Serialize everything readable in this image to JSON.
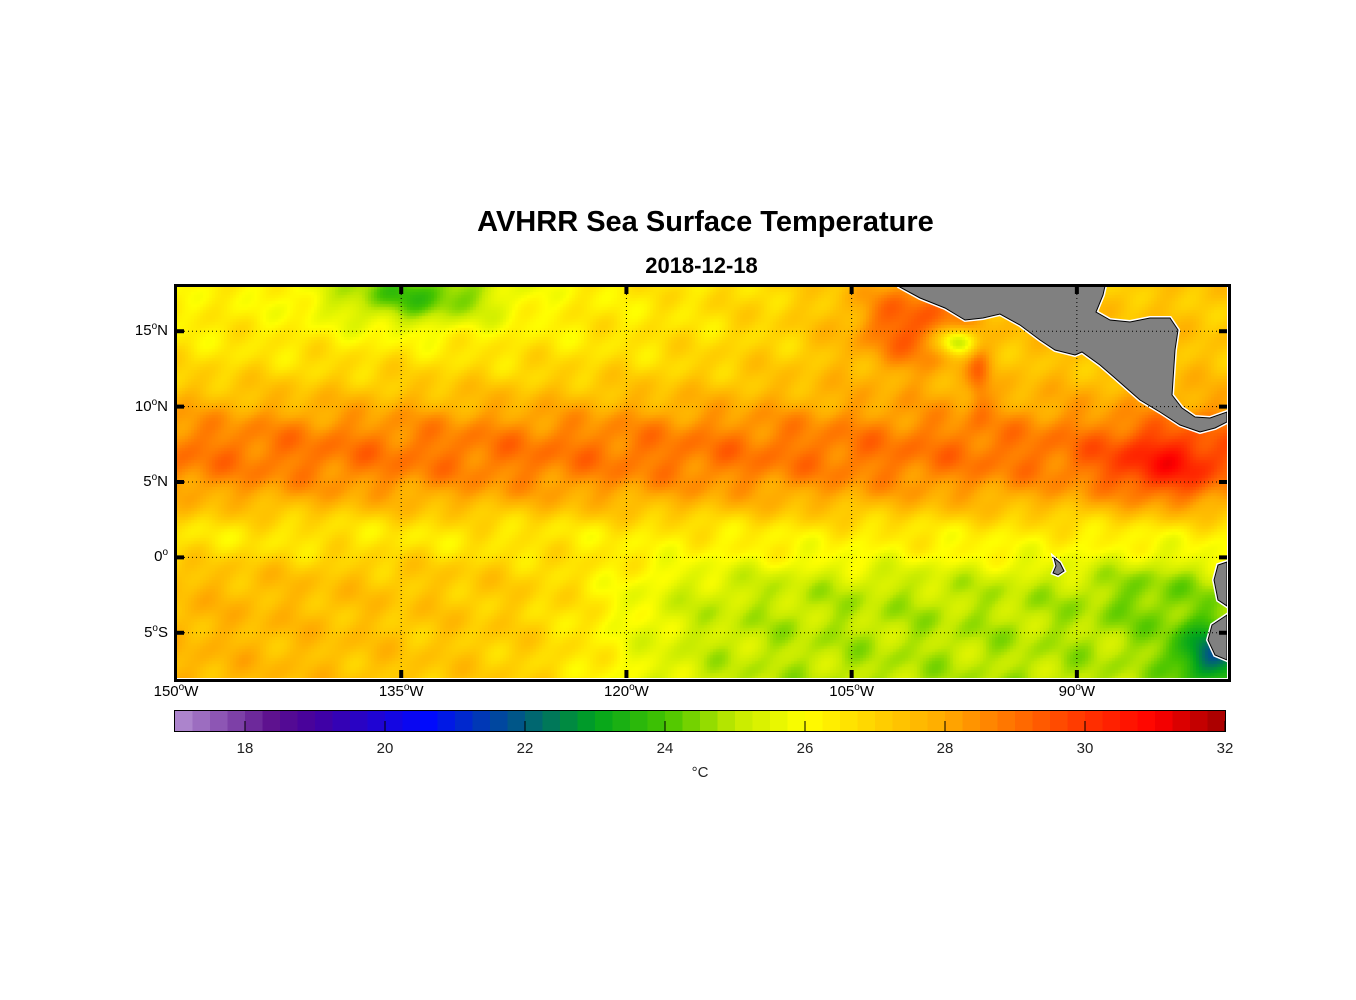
{
  "title": "AVHRR Sea Surface Temperature",
  "subtitle": "2018-12-18",
  "degree_symbol": "o",
  "chart_data": {
    "type": "heatmap",
    "title": "AVHRR Sea Surface Temperature",
    "subtitle": "2018-12-18",
    "lon_range": [
      -150,
      -80
    ],
    "lat_range": [
      -8,
      18
    ],
    "grid": true,
    "lat_ticks": [
      {
        "value": 15,
        "num": "15",
        "hem": "N"
      },
      {
        "value": 10,
        "num": "10",
        "hem": "N"
      },
      {
        "value": 5,
        "num": "5",
        "hem": "N"
      },
      {
        "value": 0,
        "num": "0",
        "hem": ""
      },
      {
        "value": -5,
        "num": "5",
        "hem": "S"
      }
    ],
    "lon_ticks": [
      {
        "value": -150,
        "num": "150",
        "hem": "W"
      },
      {
        "value": -135,
        "num": "135",
        "hem": "W"
      },
      {
        "value": -120,
        "num": "120",
        "hem": "W"
      },
      {
        "value": -105,
        "num": "105",
        "hem": "W"
      },
      {
        "value": -90,
        "num": "90",
        "hem": "W"
      }
    ],
    "colorbar": {
      "range": [
        17,
        32
      ],
      "ticks": [
        "18",
        "20",
        "22",
        "24",
        "26",
        "28",
        "30",
        "32"
      ],
      "tick_values": [
        18,
        20,
        22,
        24,
        26,
        28,
        30,
        32
      ],
      "label": "°C",
      "steps": 60
    },
    "colormap_stops": [
      [
        17,
        "#b48fd2"
      ],
      [
        18.4,
        "#5c108e"
      ],
      [
        19,
        "#44009e"
      ],
      [
        20.6,
        "#0008ff"
      ],
      [
        22,
        "#005e7c"
      ],
      [
        23,
        "#00a41e"
      ],
      [
        24,
        "#44c400"
      ],
      [
        25,
        "#c4ea00"
      ],
      [
        26,
        "#ffff00"
      ],
      [
        27,
        "#ffd200"
      ],
      [
        28,
        "#ffaa00"
      ],
      [
        29,
        "#ff7000"
      ],
      [
        30,
        "#ff3400"
      ],
      [
        31,
        "#ff0000"
      ],
      [
        32,
        "#a00000"
      ]
    ],
    "land_color": "#808080"
  }
}
